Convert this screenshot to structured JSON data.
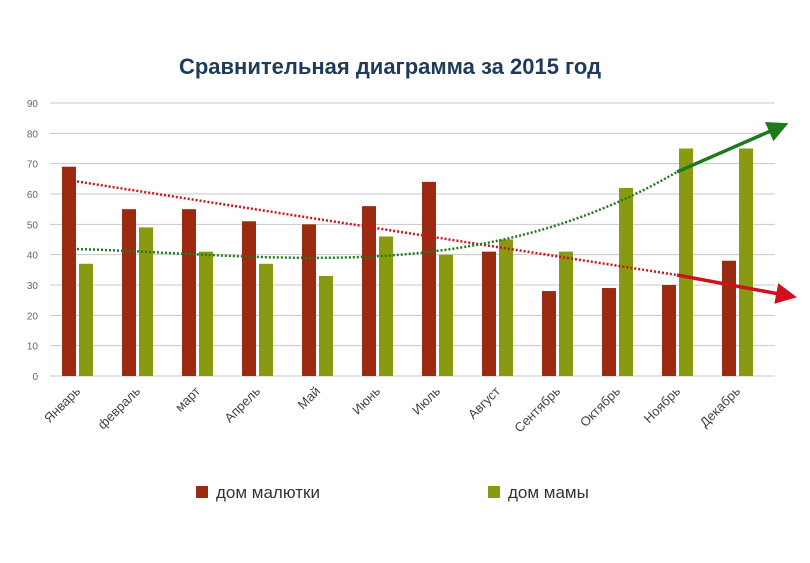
{
  "chart_data": {
    "type": "bar",
    "title": "Сравнительная диаграмма за 2015 год",
    "xlabel": "",
    "ylabel": "",
    "ylim": [
      0,
      90
    ],
    "yticks": [
      0,
      10,
      20,
      30,
      40,
      50,
      60,
      70,
      80,
      90
    ],
    "grid": true,
    "legend_position": "bottom",
    "categories": [
      "Январь",
      "февраль",
      "март",
      "Апрель",
      "Май",
      "Июнь",
      "Июль",
      "Август",
      "Сентябрь",
      "Октябрь",
      "Ноябрь",
      "Декабрь"
    ],
    "series": [
      {
        "name": "дом малютки",
        "color": "#9b2a10",
        "values": [
          69,
          55,
          55,
          51,
          50,
          56,
          64,
          41,
          28,
          29,
          30,
          38
        ],
        "trendline": "linear",
        "trend_color": "#d0101a"
      },
      {
        "name": "дом мамы",
        "color": "#8a9a10",
        "values": [
          37,
          49,
          41,
          37,
          33,
          46,
          40,
          45,
          41,
          62,
          75,
          75
        ],
        "trendline": "polynomial",
        "trend_color": "#1e7a1e"
      }
    ]
  }
}
